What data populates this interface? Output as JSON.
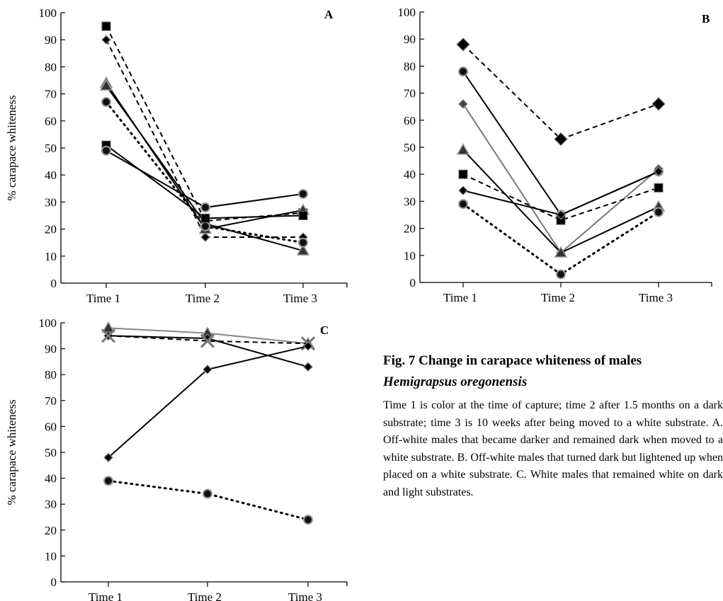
{
  "chart_data": [
    {
      "panel": "A",
      "type": "line",
      "ylabel": "% carapace whiteness",
      "ylim": [
        0,
        100
      ],
      "yticks": [
        0,
        10,
        20,
        30,
        40,
        50,
        60,
        70,
        80,
        90,
        100
      ],
      "categories": [
        "Time 1",
        "Time 2",
        "Time 3"
      ],
      "series": [
        {
          "values": [
            95,
            23,
            26
          ],
          "marker": "square",
          "style": "dashed",
          "color": "#000000"
        },
        {
          "values": [
            90,
            17,
            17
          ],
          "marker": "diamond",
          "style": "dashed",
          "color": "#000000"
        },
        {
          "values": [
            74,
            20,
            27
          ],
          "marker": "triangle",
          "style": "solid",
          "color": "#000000"
        },
        {
          "values": [
            73,
            22,
            12
          ],
          "marker": "triangle",
          "style": "solid",
          "color": "#000000"
        },
        {
          "values": [
            67,
            21,
            15
          ],
          "marker": "circle",
          "style": "dotted",
          "color": "#000000"
        },
        {
          "values": [
            51,
            24,
            25
          ],
          "marker": "square",
          "style": "solid",
          "color": "#000000"
        },
        {
          "values": [
            49,
            28,
            33
          ],
          "marker": "circle",
          "style": "solid",
          "color": "#000000"
        }
      ]
    },
    {
      "panel": "B",
      "type": "line",
      "ylim": [
        0,
        100
      ],
      "yticks": [
        0,
        10,
        20,
        30,
        40,
        50,
        60,
        70,
        80,
        90,
        100
      ],
      "categories": [
        "Time 1",
        "Time 2",
        "Time 3"
      ],
      "series": [
        {
          "values": [
            88,
            53,
            66
          ],
          "marker": "diamond",
          "style": "dashed",
          "color": "#000000"
        },
        {
          "values": [
            78,
            25,
            41
          ],
          "marker": "circle",
          "style": "solid",
          "color": "#000000"
        },
        {
          "values": [
            66,
            11,
            42
          ],
          "marker": "diamond",
          "style": "solid",
          "color": "#777777"
        },
        {
          "values": [
            49,
            11,
            28
          ],
          "marker": "triangle",
          "style": "solid",
          "color": "#000000"
        },
        {
          "values": [
            40,
            23,
            35
          ],
          "marker": "square",
          "style": "dashed",
          "color": "#000000"
        },
        {
          "values": [
            34,
            25,
            41
          ],
          "marker": "diamond",
          "style": "solid",
          "color": "#000000"
        },
        {
          "values": [
            29,
            3,
            26
          ],
          "marker": "circle",
          "style": "dotted",
          "color": "#000000"
        }
      ]
    },
    {
      "panel": "C",
      "type": "line",
      "ylabel": "% carapace whiteness",
      "ylim": [
        0,
        100
      ],
      "yticks": [
        0,
        10,
        20,
        30,
        40,
        50,
        60,
        70,
        80,
        90,
        100
      ],
      "categories": [
        "Time 1",
        "Time 2",
        "Time 3"
      ],
      "series": [
        {
          "values": [
            98,
            96,
            92
          ],
          "marker": "triangle",
          "style": "solid",
          "color": "#888888"
        },
        {
          "values": [
            95,
            94,
            83
          ],
          "marker": "diamond",
          "style": "solid",
          "color": "#000000"
        },
        {
          "values": [
            95,
            93,
            92
          ],
          "marker": "x",
          "style": "dashed",
          "color": "#000000"
        },
        {
          "values": [
            48,
            82,
            91
          ],
          "marker": "diamond",
          "style": "solid",
          "color": "#000000"
        },
        {
          "values": [
            39,
            34,
            24
          ],
          "marker": "circle",
          "style": "dotted",
          "color": "#000000"
        }
      ]
    }
  ],
  "caption": {
    "title_prefix": "Fig. 7    Change in carapace whiteness of males",
    "title_italic": "Hemigrapsus oregonensis",
    "body": "Time 1 is color at the time of capture; time 2 after 1.5 months on a dark substrate; time 3 is 10 weeks after being moved to a white substrate. A. Off-white males that became darker and remained dark when moved to a white substrate. B. Off-white males that turned dark but lightened up when placed on a white substrate. C. White males that remained white on dark and light substrates."
  }
}
